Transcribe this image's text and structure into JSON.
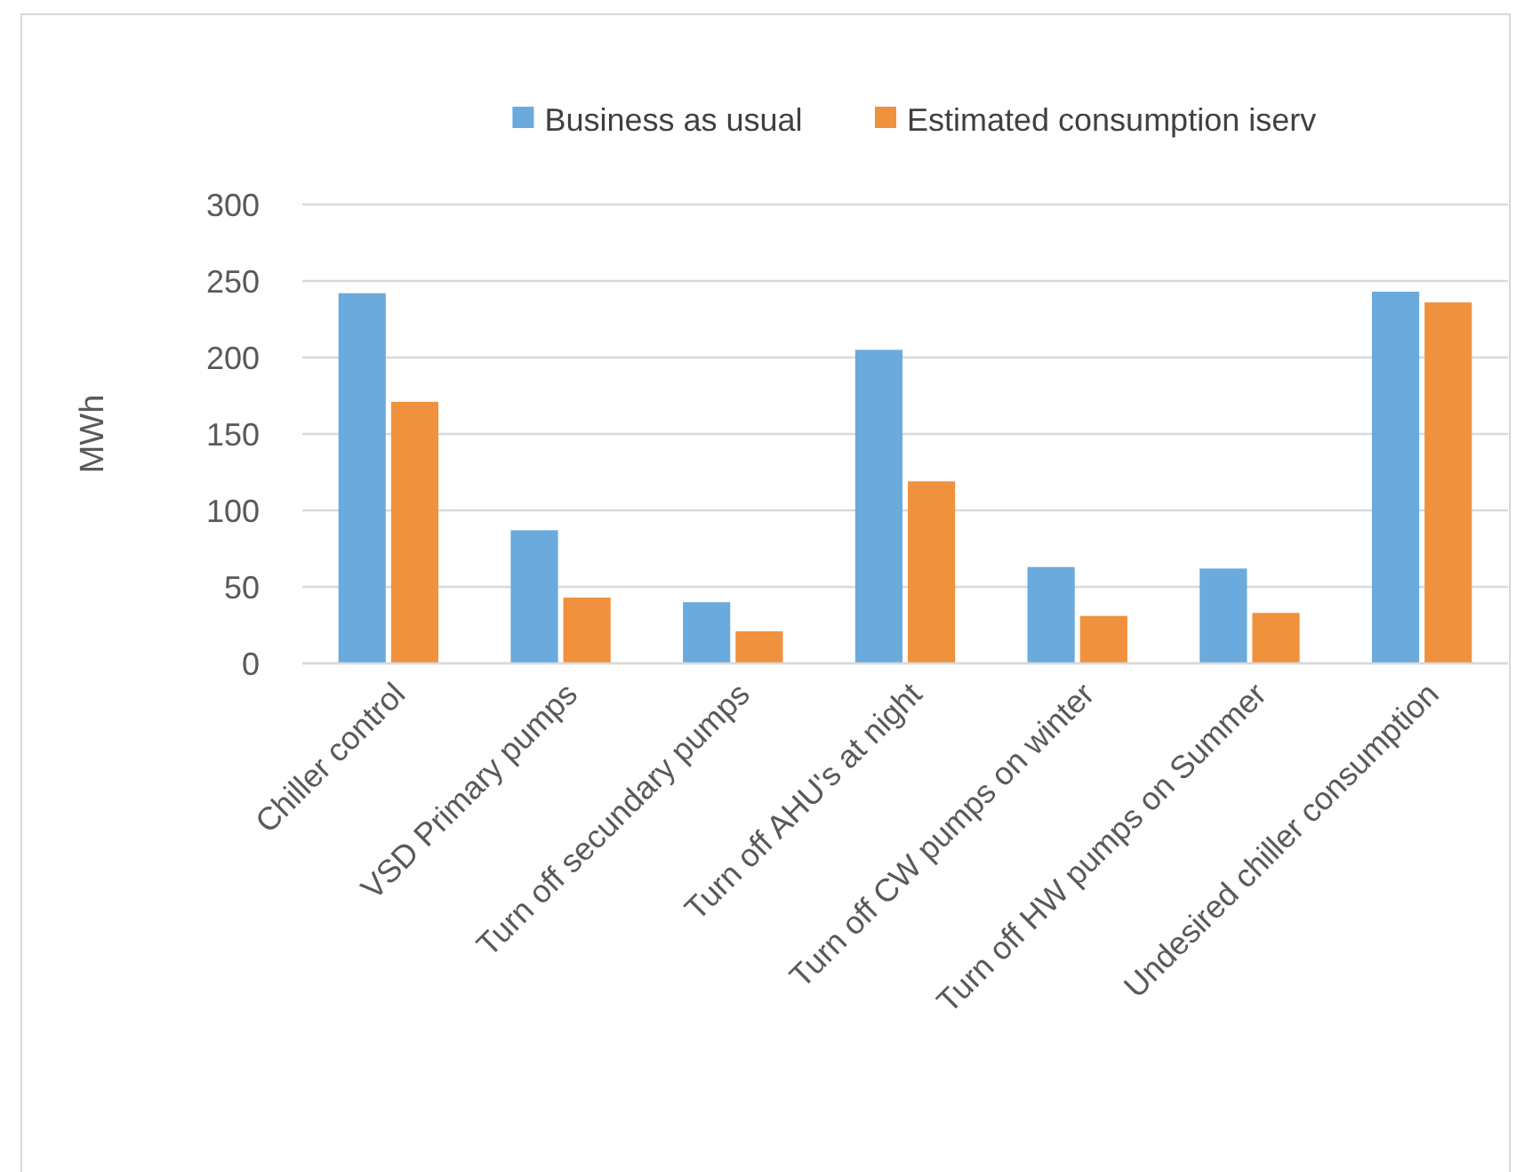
{
  "chart_data": {
    "type": "bar",
    "ylabel": "MWh",
    "categories": [
      "Chiller control",
      "VSD Primary pumps",
      "Turn off secundary pumps",
      "Turn off AHU's at night",
      "Turn off CW pumps on winter",
      "Turn off HW pumps on Summer",
      "Undesired chiller consumption"
    ],
    "series": [
      {
        "name": "Business as usual",
        "color": "#6aaadc",
        "values": [
          242,
          87,
          40,
          205,
          63,
          62,
          243
        ]
      },
      {
        "name": "Estimated consumption iserv",
        "color": "#f0913e",
        "values": [
          171,
          43,
          21,
          119,
          31,
          33,
          236
        ]
      }
    ],
    "ylim": [
      0,
      300
    ],
    "yticks": [
      0,
      50,
      100,
      150,
      200,
      250,
      300
    ],
    "grid": "y",
    "legend": "top"
  }
}
